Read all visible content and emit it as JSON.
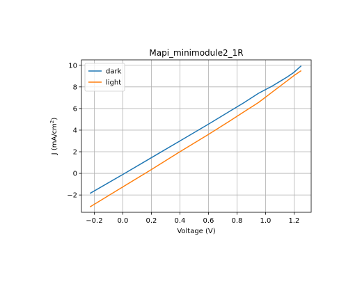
{
  "chart_data": {
    "type": "line",
    "title": "Mapi_minimodule2_1R",
    "xlabel": "Voltage (V)",
    "ylabel_main": "J (mA/cm",
    "ylabel_sup": "2",
    "ylabel_tail": ")",
    "xlim": [
      -0.29,
      1.32
    ],
    "ylim": [
      -3.6,
      10.5
    ],
    "xticks": [
      -0.2,
      0.0,
      0.2,
      0.4,
      0.6,
      0.8,
      1.0,
      1.2
    ],
    "xtick_labels": [
      "−0.2",
      "0.0",
      "0.2",
      "0.4",
      "0.6",
      "0.8",
      "1.0",
      "1.2"
    ],
    "yticks": [
      -2,
      0,
      2,
      4,
      6,
      8,
      10
    ],
    "ytick_labels": [
      "−2",
      "0",
      "2",
      "4",
      "6",
      "8",
      "10"
    ],
    "grid": true,
    "legend_position": "top-left",
    "series": [
      {
        "name": "dark",
        "color": "#1f77b4",
        "x": [
          -0.23,
          0.0,
          0.2,
          0.4,
          0.6,
          0.75,
          0.85,
          0.95,
          1.0,
          1.05,
          1.1,
          1.15,
          1.2,
          1.25
        ],
        "y": [
          -1.85,
          -0.1,
          1.45,
          3.0,
          4.55,
          5.75,
          6.55,
          7.4,
          7.75,
          8.1,
          8.5,
          8.9,
          9.35,
          9.95
        ]
      },
      {
        "name": "light",
        "color": "#ff7f0e",
        "x": [
          -0.23,
          0.0,
          0.2,
          0.4,
          0.6,
          0.75,
          0.85,
          0.95,
          1.0,
          1.05,
          1.1,
          1.15,
          1.2,
          1.25
        ],
        "y": [
          -3.1,
          -1.25,
          0.35,
          2.0,
          3.6,
          4.85,
          5.7,
          6.55,
          7.05,
          7.55,
          8.05,
          8.55,
          9.05,
          9.5
        ]
      }
    ]
  }
}
